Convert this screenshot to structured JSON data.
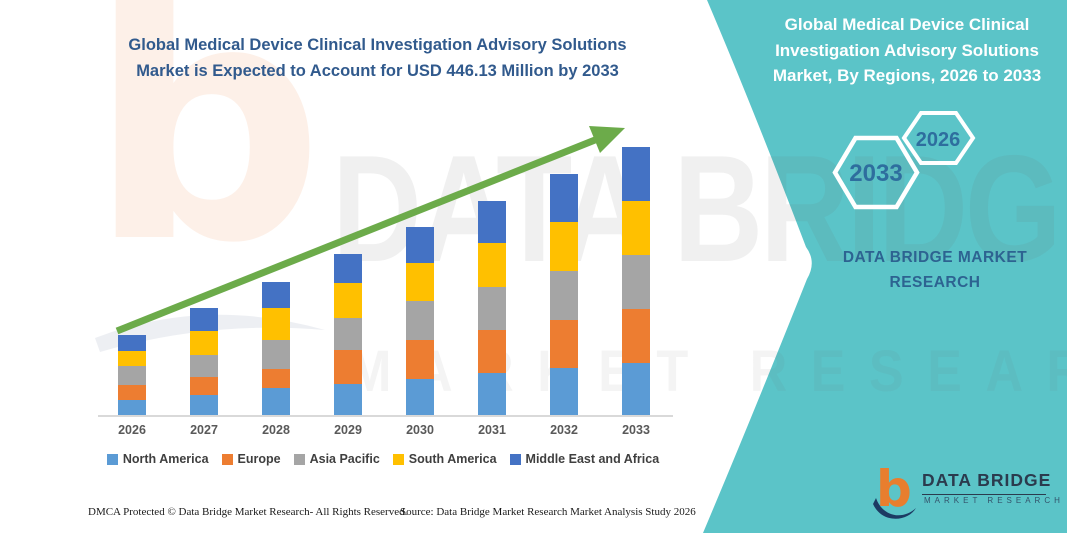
{
  "left": {
    "title": "Global Medical Device Clinical Investigation Advisory Solutions Market is Expected to Account for USD 446.13 Million by 2033",
    "footer_dmca": "DMCA Protected © Data Bridge Market Research-  All Rights Reserved.",
    "footer_source": "Source: Data Bridge Market Research  Market Analysis Study 2026"
  },
  "right": {
    "title": "Global Medical Device Clinical Investigation Advisory Solutions Market, By Regions, 2026 to 2033",
    "hex_2033": "2033",
    "hex_2026": "2026",
    "brand_line1": "DATA BRIDGE MARKET",
    "brand_line2": "RESEARCH",
    "logo_name": "DATA BRIDGE",
    "logo_sub": "MARKET RESEARCH"
  },
  "watermarks": {
    "logo_letter": "b",
    "big_text": "DATA BRIDGE",
    "sub_text": "MARKET RESEARCH"
  },
  "chart_data": {
    "type": "bar",
    "stacked": true,
    "unit": "USD Million",
    "title": "Global Medical Device Clinical Investigation Advisory Solutions Market, By Regions, 2026 to 2033",
    "categories": [
      "2026",
      "2027",
      "2028",
      "2029",
      "2030",
      "2031",
      "2032",
      "2033"
    ],
    "series": [
      {
        "name": "North America",
        "color": "#5B9BD5",
        "values": [
          25.0,
          33.3,
          44.9,
          51.6,
          59.9,
          69.9,
          78.2,
          86.6
        ]
      },
      {
        "name": "Europe",
        "color": "#ED7D31",
        "values": [
          25.0,
          30.0,
          31.6,
          56.6,
          64.9,
          71.6,
          79.9,
          89.9
        ]
      },
      {
        "name": "Asia Pacific",
        "color": "#A5A5A5",
        "values": [
          31.6,
          36.6,
          48.3,
          53.3,
          64.9,
          71.6,
          81.6,
          89.9
        ]
      },
      {
        "name": "South America",
        "color": "#FFC000",
        "values": [
          25.0,
          40.0,
          53.3,
          58.3,
          63.3,
          73.2,
          81.6,
          89.9
        ]
      },
      {
        "name": "Middle East and Africa",
        "color": "#4472C4",
        "values": [
          26.6,
          38.3,
          43.3,
          48.3,
          59.9,
          69.9,
          79.9,
          89.9
        ]
      }
    ],
    "totals_by_year": [
      133.2,
      178.2,
      221.4,
      268.1,
      312.9,
      356.2,
      401.2,
      446.1
    ],
    "final_year_total_label": "USD 446.13 Million",
    "legend_position": "bottom",
    "gridlines": false,
    "y_axis_visible": false,
    "trend_arrow": true
  },
  "colors": {
    "teal_panel": "#5BC4C8",
    "title_blue": "#315A8D",
    "arrow_green": "#6CAB4A",
    "hex_text": "#2e6e9e",
    "hex_stroke": "#ffffff",
    "brand_text": "#2d6391",
    "axis_line": "#d9d9d9",
    "year_label": "#595959",
    "legend_text": "#3f3f3f",
    "logo_orange": "#E87E2E",
    "logo_navy": "#1C3B63"
  }
}
